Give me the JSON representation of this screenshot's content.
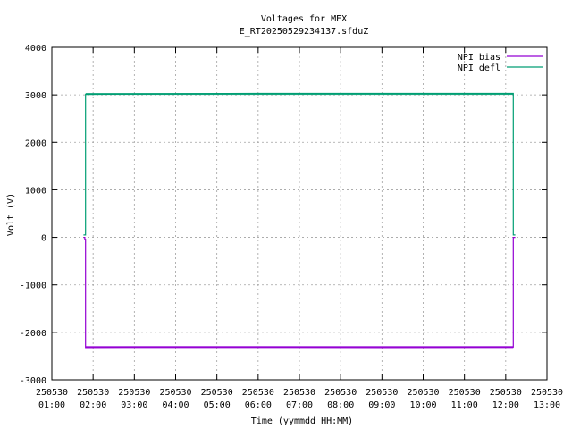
{
  "chart_data": {
    "type": "line",
    "title": "Voltages for MEX",
    "subtitle": "E_RT20250529234137.sfduZ",
    "xlabel": "Time (yymmdd HH:MM)",
    "ylabel": "Volt (V)",
    "grid": true,
    "legend_position": "top-right",
    "xlim": [
      "250530 01:00",
      "250530 13:00"
    ],
    "ylim": [
      -3000,
      4000
    ],
    "x_ticks": [
      {
        "date": "250530",
        "time": "01:00"
      },
      {
        "date": "250530",
        "time": "02:00"
      },
      {
        "date": "250530",
        "time": "03:00"
      },
      {
        "date": "250530",
        "time": "04:00"
      },
      {
        "date": "250530",
        "time": "05:00"
      },
      {
        "date": "250530",
        "time": "06:00"
      },
      {
        "date": "250530",
        "time": "07:00"
      },
      {
        "date": "250530",
        "time": "08:00"
      },
      {
        "date": "250530",
        "time": "09:00"
      },
      {
        "date": "250530",
        "time": "10:00"
      },
      {
        "date": "250530",
        "time": "11:00"
      },
      {
        "date": "250530",
        "time": "12:00"
      },
      {
        "date": "250530",
        "time": "13:00"
      }
    ],
    "y_ticks": [
      4000,
      3000,
      2000,
      1000,
      0,
      -1000,
      -2000,
      -3000
    ],
    "series": [
      {
        "name": "NPI bias",
        "color": "#9400d3",
        "x": [
          "250530 01:46",
          "250530 01:48",
          "250530 01:48",
          "250530 01:49",
          "250530 01:49",
          "250530 03:00",
          "250530 06:00",
          "250530 09:00",
          "250530 12:00",
          "250530 12:11",
          "250530 12:11",
          "250530 12:14"
        ],
        "y": [
          0,
          0,
          -40,
          -40,
          -2320,
          -2310,
          -2310,
          -2320,
          -2310,
          -2310,
          0,
          0
        ],
        "noise_band": 40
      },
      {
        "name": "NPI defl",
        "color": "#009e73",
        "x": [
          "250530 01:46",
          "250530 01:48",
          "250530 01:48",
          "250530 01:49",
          "250530 01:49",
          "250530 03:00",
          "250530 06:00",
          "250530 09:00",
          "250530 12:00",
          "250530 12:11",
          "250530 12:11",
          "250530 12:14"
        ],
        "y": [
          50,
          50,
          50,
          50,
          3010,
          3020,
          3030,
          3030,
          3030,
          3030,
          50,
          50
        ],
        "noise_band": 10
      }
    ]
  }
}
